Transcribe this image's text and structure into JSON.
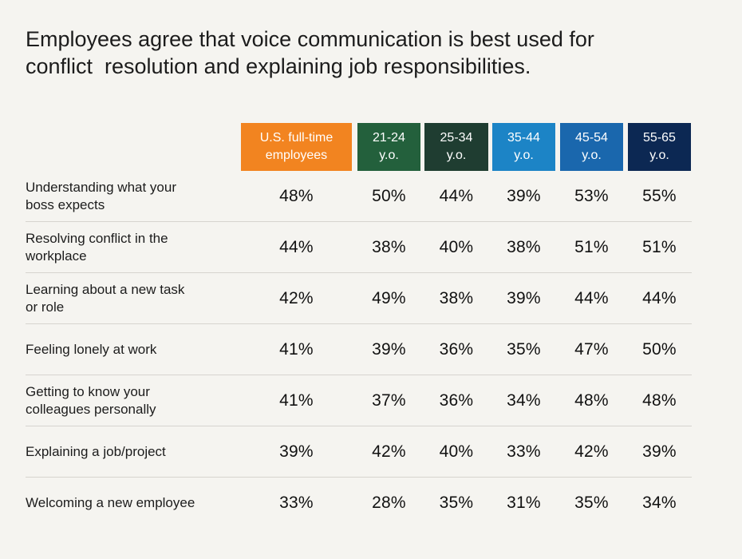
{
  "chart_data": {
    "type": "table",
    "title": "Employees agree that voice communication is best used for\nconflict  resolution and explaining job responsibilities.",
    "columns": [
      {
        "label": "U.S. full-time\nemployees",
        "color": "#f28420"
      },
      {
        "label": "21-24\ny.o.",
        "color": "#23603c"
      },
      {
        "label": "25-34\ny.o.",
        "color": "#1f3d31"
      },
      {
        "label": "35-44\ny.o.",
        "color": "#1c84c6"
      },
      {
        "label": "45-54\ny.o.",
        "color": "#1a67ad"
      },
      {
        "label": "55-65\ny.o.",
        "color": "#0c2853"
      }
    ],
    "rows": [
      {
        "label": "Understanding what your\nboss expects",
        "values": [
          "48%",
          "50%",
          "44%",
          "39%",
          "53%",
          "55%"
        ]
      },
      {
        "label": "Resolving conflict in the\nworkplace",
        "values": [
          "44%",
          "38%",
          "40%",
          "38%",
          "51%",
          "51%"
        ]
      },
      {
        "label": "Learning about a new task\nor role",
        "values": [
          "42%",
          "49%",
          "38%",
          "39%",
          "44%",
          "44%"
        ]
      },
      {
        "label": "Feeling lonely at work",
        "values": [
          "41%",
          "39%",
          "36%",
          "35%",
          "47%",
          "50%"
        ]
      },
      {
        "label": "Getting to know your\ncolleagues personally",
        "values": [
          "41%",
          "37%",
          "36%",
          "34%",
          "48%",
          "48%"
        ]
      },
      {
        "label": "Explaining a job/project",
        "values": [
          "39%",
          "42%",
          "40%",
          "33%",
          "42%",
          "39%"
        ]
      },
      {
        "label": "Welcoming a new employee",
        "values": [
          "33%",
          "28%",
          "35%",
          "31%",
          "35%",
          "34%"
        ]
      }
    ]
  }
}
